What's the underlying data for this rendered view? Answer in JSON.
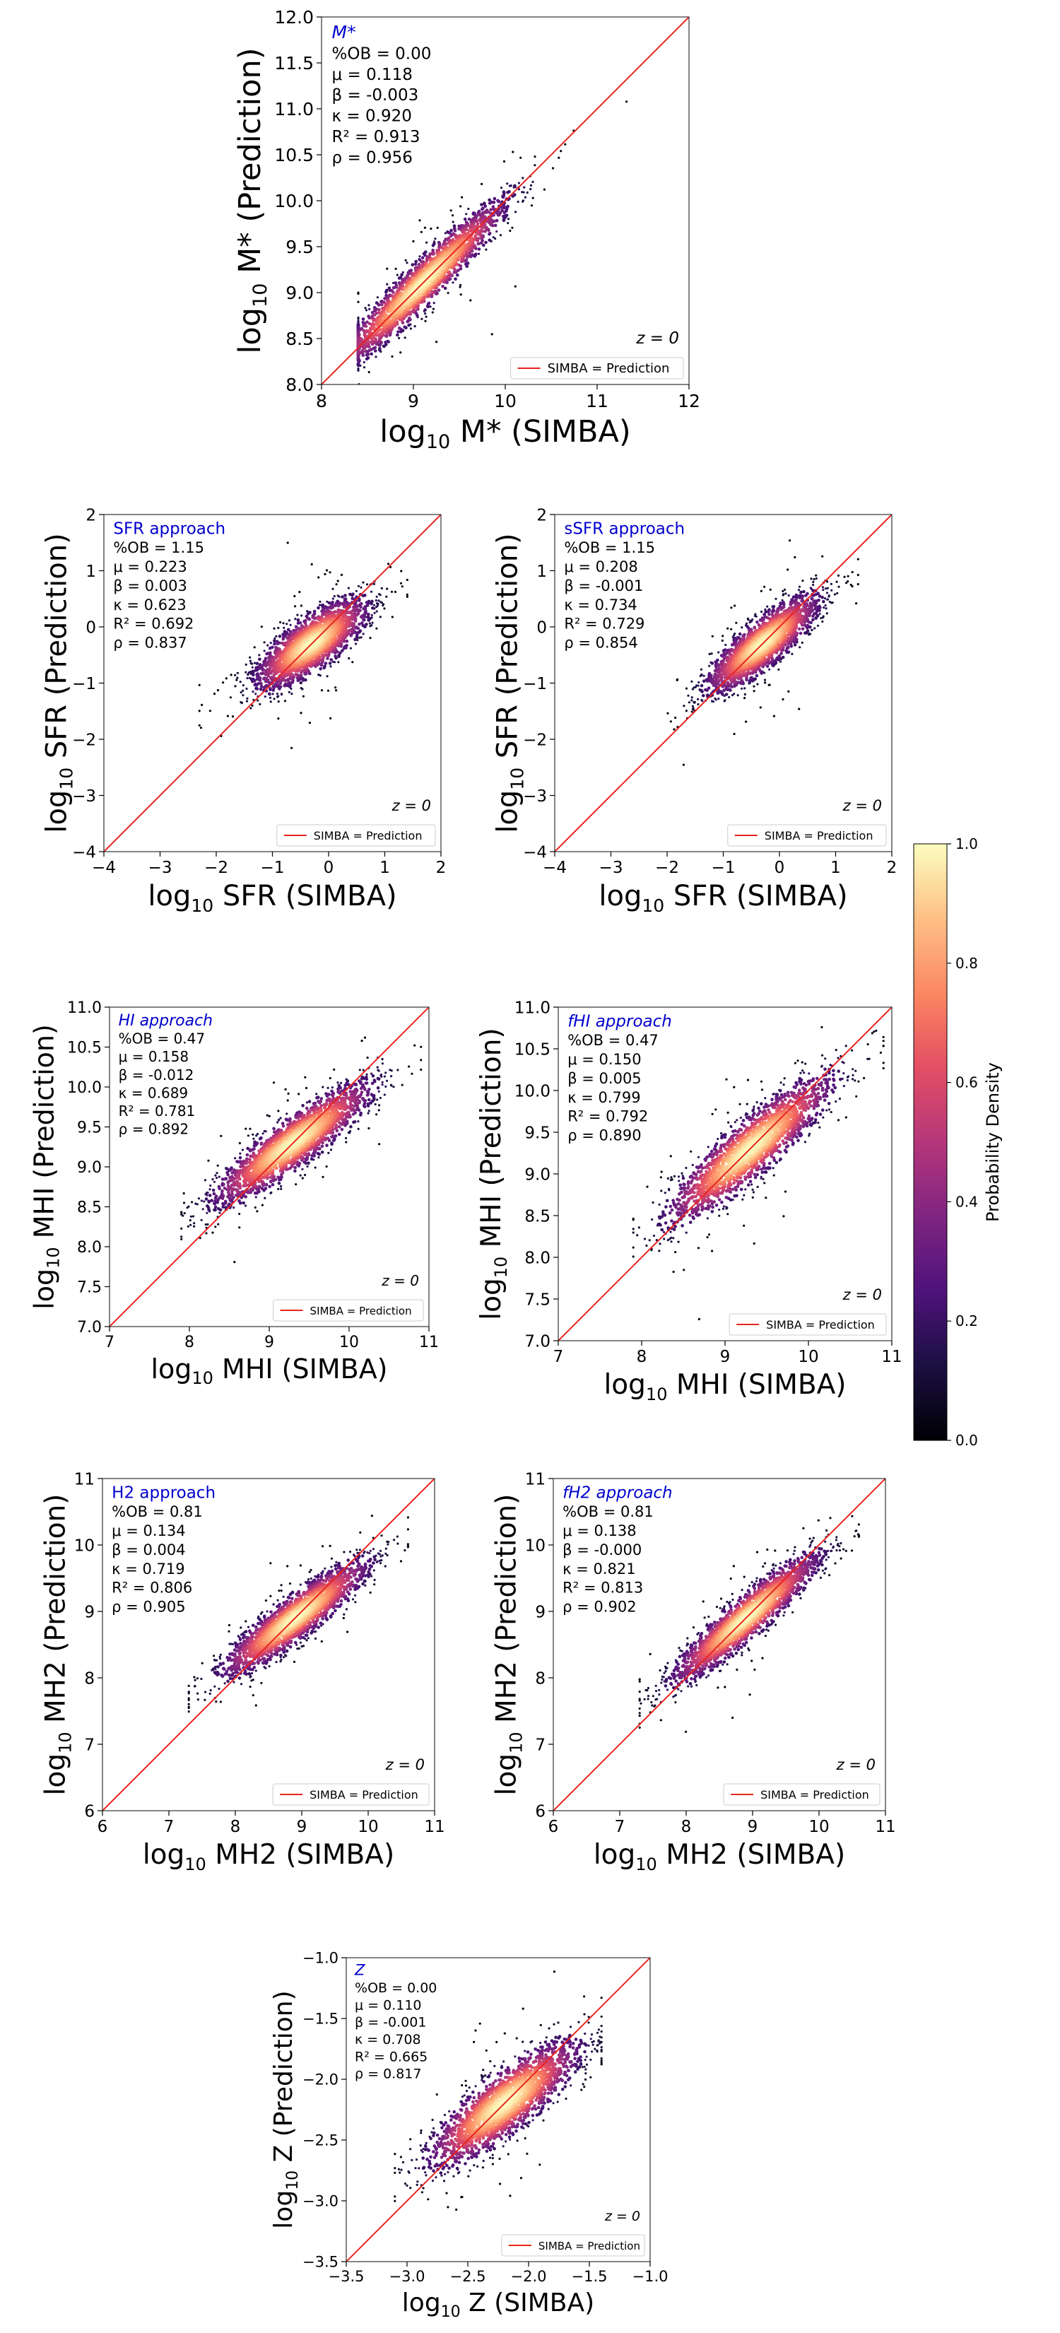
{
  "figure": {
    "legend_label": "SIMBA = Prediction",
    "redshift": "z = 0",
    "colorbar": {
      "label": "Probability Density",
      "ticks": [
        "0.0",
        "0.2",
        "0.4",
        "0.6",
        "0.8",
        "1.0"
      ],
      "range": [
        0,
        1
      ]
    },
    "colors": {
      "identity_line": "#e8231f",
      "panel_title": "#0000cc",
      "text": "#000000"
    }
  },
  "chart_data": [
    {
      "id": "mstar",
      "type": "scatter",
      "title": "M*",
      "title_italic": true,
      "stats": [
        "%OB = 0.00",
        "μ = 0.118",
        "β = -0.003",
        "κ = 0.920",
        "R² = 0.913",
        "ρ = 0.956"
      ],
      "xlabel": "log10 M* (SIMBA)",
      "ylabel": "log10 M* (Prediction)",
      "xlim": [
        8,
        12
      ],
      "ylim": [
        8,
        12
      ],
      "xticks": [
        8,
        9,
        10,
        11,
        12
      ],
      "yticks": [
        8.0,
        8.5,
        9.0,
        9.5,
        10.0,
        10.5,
        11.0,
        11.5,
        12.0
      ],
      "xtick_labels": [
        "8",
        "9",
        "10",
        "11",
        "12"
      ],
      "ytick_labels": [
        "8.0",
        "8.5",
        "9.0",
        "9.5",
        "10.0",
        "10.5",
        "11.0",
        "11.5",
        "12.0"
      ],
      "cloud": {
        "x_center": 9.1,
        "x_sd": 0.42,
        "x_min": 8.4,
        "x_max": 11.4,
        "slope": 0.95,
        "scatter": 0.13,
        "n": 2300
      },
      "identity": [
        8,
        12
      ]
    },
    {
      "id": "sfr",
      "type": "scatter",
      "title": "SFR approach",
      "title_italic": false,
      "stats": [
        "%OB = 1.15",
        "μ = 0.223",
        "β = 0.003",
        "κ = 0.623",
        "R² = 0.692",
        "ρ = 0.837"
      ],
      "xlabel": "log10 SFR (SIMBA)",
      "ylabel": "log10 SFR (Prediction)",
      "xlim": [
        -4,
        2
      ],
      "ylim": [
        -4,
        2
      ],
      "xticks": [
        -4,
        -3,
        -2,
        -1,
        0,
        1,
        2
      ],
      "yticks": [
        -4,
        -3,
        -2,
        -1,
        0,
        1,
        2
      ],
      "xtick_labels": [
        "−4",
        "−3",
        "−2",
        "−1",
        "0",
        "1",
        "2"
      ],
      "ytick_labels": [
        "−4",
        "−3",
        "−2",
        "−1",
        "0",
        "1",
        "2"
      ],
      "cloud": {
        "x_center": -0.3,
        "x_sd": 0.45,
        "x_min": -2.3,
        "x_max": 1.4,
        "slope": 0.62,
        "scatter": 0.24,
        "n": 2300
      },
      "identity": [
        -4,
        2
      ]
    },
    {
      "id": "ssfr",
      "type": "scatter",
      "title": "sSFR approach",
      "title_italic": false,
      "stats": [
        "%OB = 1.15",
        "μ = 0.208",
        "β = -0.001",
        "κ = 0.734",
        "R² = 0.729",
        "ρ = 0.854"
      ],
      "xlabel": "log10 SFR (SIMBA)",
      "ylabel": "log10 SFR (Prediction)",
      "xlim": [
        -4,
        2
      ],
      "ylim": [
        -4,
        2
      ],
      "xticks": [
        -4,
        -3,
        -2,
        -1,
        0,
        1,
        2
      ],
      "yticks": [
        -4,
        -3,
        -2,
        -1,
        0,
        1,
        2
      ],
      "xtick_labels": [
        "−4",
        "−3",
        "−2",
        "−1",
        "0",
        "1",
        "2"
      ],
      "ytick_labels": [
        "−4",
        "−3",
        "−2",
        "−1",
        "0",
        "1",
        "2"
      ],
      "cloud": {
        "x_center": -0.3,
        "x_sd": 0.45,
        "x_min": -2.3,
        "x_max": 1.4,
        "slope": 0.73,
        "scatter": 0.22,
        "n": 2300
      },
      "identity": [
        -4,
        2
      ]
    },
    {
      "id": "hi",
      "type": "scatter",
      "title": "HI approach",
      "title_italic": true,
      "stats": [
        "%OB = 0.47",
        "μ = 0.158",
        "β = -0.012",
        "κ = 0.689",
        "R² = 0.781",
        "ρ = 0.892"
      ],
      "xlabel": "log10 MHI (SIMBA)",
      "ylabel": "log10 MHI (Prediction)",
      "xlim": [
        7,
        11
      ],
      "ylim": [
        7,
        11
      ],
      "xticks": [
        7,
        8,
        9,
        10,
        11
      ],
      "yticks": [
        7.0,
        7.5,
        8.0,
        8.5,
        9.0,
        9.5,
        10.0,
        10.5,
        11.0
      ],
      "xtick_labels": [
        "7",
        "8",
        "9",
        "10",
        "11"
      ],
      "ytick_labels": [
        "7.0",
        "7.5",
        "8.0",
        "8.5",
        "9.0",
        "9.5",
        "10.0",
        "10.5",
        "11.0"
      ],
      "cloud": {
        "x_center": 9.3,
        "x_sd": 0.45,
        "x_min": 7.9,
        "x_max": 10.9,
        "slope": 0.69,
        "scatter": 0.16,
        "n": 2300
      },
      "identity": [
        7,
        11
      ]
    },
    {
      "id": "fhi",
      "type": "scatter",
      "title": "fHI approach",
      "title_italic": true,
      "stats": [
        "%OB = 0.47",
        "μ = 0.150",
        "β = 0.005",
        "κ = 0.799",
        "R² = 0.792",
        "ρ = 0.890"
      ],
      "xlabel": "log10 MHI (SIMBA)",
      "ylabel": "log10 MHI (Prediction)",
      "xlim": [
        7,
        11
      ],
      "ylim": [
        7,
        11
      ],
      "xticks": [
        7,
        8,
        9,
        10,
        11
      ],
      "yticks": [
        7.0,
        7.5,
        8.0,
        8.5,
        9.0,
        9.5,
        10.0,
        10.5,
        11.0
      ],
      "xtick_labels": [
        "7",
        "8",
        "9",
        "10",
        "11"
      ],
      "ytick_labels": [
        "7.0",
        "7.5",
        "8.0",
        "8.5",
        "9.0",
        "9.5",
        "10.0",
        "10.5",
        "11.0"
      ],
      "cloud": {
        "x_center": 9.3,
        "x_sd": 0.45,
        "x_min": 7.9,
        "x_max": 10.9,
        "slope": 0.8,
        "scatter": 0.18,
        "n": 2300
      },
      "identity": [
        7,
        11
      ]
    },
    {
      "id": "h2",
      "type": "scatter",
      "title": "H2 approach",
      "title_italic": false,
      "stats": [
        "%OB = 0.81",
        "μ = 0.134",
        "β = 0.004",
        "κ = 0.719",
        "R² = 0.806",
        "ρ = 0.905"
      ],
      "xlabel": "log10 MH2 (SIMBA)",
      "ylabel": "log10 MH2 (Prediction)",
      "xlim": [
        6,
        11
      ],
      "ylim": [
        6,
        11
      ],
      "xticks": [
        6,
        7,
        8,
        9,
        10,
        11
      ],
      "yticks": [
        6,
        7,
        8,
        9,
        10,
        11
      ],
      "xtick_labels": [
        "6",
        "7",
        "8",
        "9",
        "10",
        "11"
      ],
      "ytick_labels": [
        "6",
        "7",
        "8",
        "9",
        "10",
        "11"
      ],
      "cloud": {
        "x_center": 8.9,
        "x_sd": 0.5,
        "x_min": 7.3,
        "x_max": 10.6,
        "slope": 0.72,
        "scatter": 0.17,
        "n": 2300
      },
      "identity": [
        6,
        11
      ]
    },
    {
      "id": "fh2",
      "type": "scatter",
      "title": "fH2 approach",
      "title_italic": true,
      "stats": [
        "%OB = 0.81",
        "μ = 0.138",
        "β = -0.000",
        "κ = 0.821",
        "R² = 0.813",
        "ρ = 0.902"
      ],
      "xlabel": "log10 MH2 (SIMBA)",
      "ylabel": "log10 MH2 (Prediction)",
      "xlim": [
        6,
        11
      ],
      "ylim": [
        6,
        11
      ],
      "xticks": [
        6,
        7,
        8,
        9,
        10,
        11
      ],
      "yticks": [
        6,
        7,
        8,
        9,
        10,
        11
      ],
      "xtick_labels": [
        "6",
        "7",
        "8",
        "9",
        "10",
        "11"
      ],
      "ytick_labels": [
        "6",
        "7",
        "8",
        "9",
        "10",
        "11"
      ],
      "cloud": {
        "x_center": 8.9,
        "x_sd": 0.5,
        "x_min": 7.3,
        "x_max": 10.6,
        "slope": 0.82,
        "scatter": 0.17,
        "n": 2300
      },
      "identity": [
        6,
        11
      ]
    },
    {
      "id": "z",
      "type": "scatter",
      "title": "Z",
      "title_italic": true,
      "stats": [
        "%OB = 0.00",
        "μ = 0.110",
        "β = -0.001",
        "κ = 0.708",
        "R² = 0.665",
        "ρ = 0.817"
      ],
      "xlabel": "log10 Z (SIMBA)",
      "ylabel": "log10 Z (Prediction)",
      "xlim": [
        -3.5,
        -1.0
      ],
      "ylim": [
        -3.5,
        -1.0
      ],
      "xticks": [
        -3.5,
        -3.0,
        -2.5,
        -2.0,
        -1.5,
        -1.0
      ],
      "yticks": [
        -3.5,
        -3.0,
        -2.5,
        -2.0,
        -1.5,
        -1.0
      ],
      "xtick_labels": [
        "−3.5",
        "−3.0",
        "−2.5",
        "−2.0",
        "−1.5",
        "−1.0"
      ],
      "ytick_labels": [
        "−3.5",
        "−3.0",
        "−2.5",
        "−2.0",
        "−1.5",
        "−1.0"
      ],
      "cloud": {
        "x_center": -2.2,
        "x_sd": 0.28,
        "x_min": -3.1,
        "x_max": -1.4,
        "slope": 0.7,
        "scatter": 0.13,
        "n": 2300
      },
      "identity": [
        -3.5,
        -1.0
      ]
    }
  ]
}
